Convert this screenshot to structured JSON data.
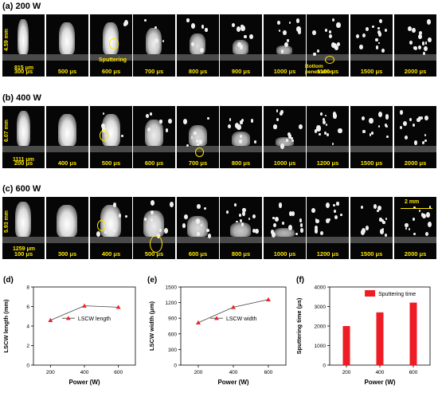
{
  "rows": [
    {
      "label": "(a) 200 W",
      "times": [
        "300 μs",
        "500 μs",
        "600 μs",
        "700 μs",
        "800 μs",
        "900 μs",
        "1000 μs",
        "1100 μs",
        "1500 μs",
        "2000 μs"
      ],
      "height_ann": "4.59 mm",
      "width_ann": "815 μm",
      "notes": [
        "Sputtering",
        "Bottom penetration"
      ]
    },
    {
      "label": "(b) 400 W",
      "times": [
        "200 μs",
        "400 μs",
        "500 μs",
        "600 μs",
        "700 μs",
        "800 μs",
        "1000 μs",
        "1200 μs",
        "1500 μs",
        "2000 μs"
      ],
      "height_ann": "6.07 mm",
      "width_ann": "1111 μm",
      "notes": []
    },
    {
      "label": "(c) 600 W",
      "times": [
        "100 μs",
        "300 μs",
        "400 μs",
        "500 μs",
        "600 μs",
        "800 μs",
        "1000 μs",
        "1200 μs",
        "1500 μs",
        "2000 μs"
      ],
      "height_ann": "5.93 mm",
      "width_ann": "1259 μm",
      "notes": [],
      "scale_bar": "2 mm"
    }
  ],
  "chart_data": [
    {
      "type": "line",
      "panel": "(d)",
      "x": [
        200,
        400,
        600
      ],
      "values": [
        4.59,
        6.07,
        5.93
      ],
      "xlabel": "Power (W)",
      "ylabel": "LSCW length (mm)",
      "xticks": [
        "200",
        "400",
        "600"
      ],
      "yticks": [
        "0",
        "2",
        "4",
        "6",
        "8"
      ],
      "ylim": [
        0,
        8
      ],
      "legend": "LSCW length",
      "color": "#e8262b"
    },
    {
      "type": "line",
      "panel": "(e)",
      "x": [
        200,
        400,
        600
      ],
      "values": [
        815,
        1111,
        1259
      ],
      "xlabel": "Power (W)",
      "ylabel": "LSCW width (μm)",
      "xticks": [
        "200",
        "400",
        "600"
      ],
      "yticks": [
        "0",
        "300",
        "600",
        "900",
        "1200",
        "1500"
      ],
      "ylim": [
        0,
        1500
      ],
      "legend": "LSCW width",
      "color": "#e8262b"
    },
    {
      "type": "bar",
      "panel": "(f)",
      "categories": [
        "200",
        "400",
        "600"
      ],
      "values": [
        2000,
        2700,
        3200
      ],
      "xlabel": "Power (W)",
      "ylabel": "Sputtering time (μs)",
      "yticks": [
        "0",
        "1000",
        "2000",
        "3000",
        "4000"
      ],
      "ylim": [
        0,
        4000
      ],
      "legend": "Sputtering time",
      "color": "#ee1c24"
    }
  ]
}
